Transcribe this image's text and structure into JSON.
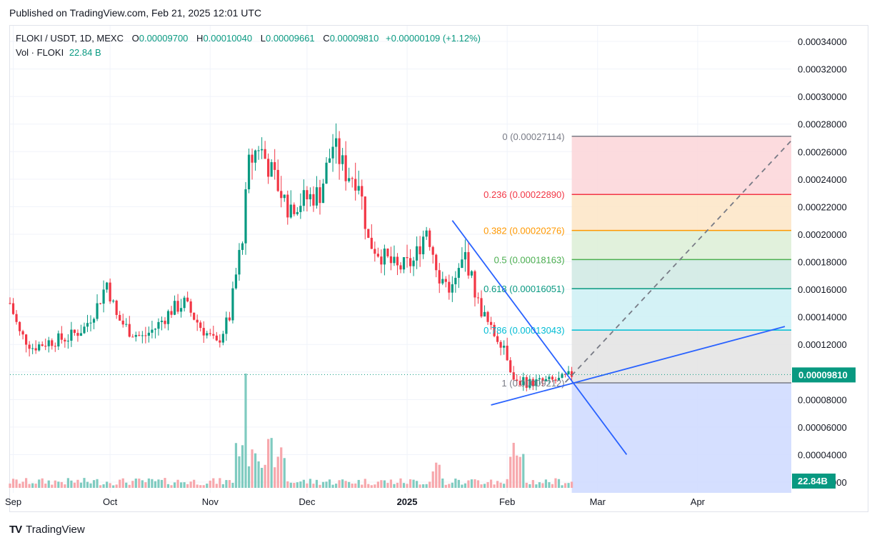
{
  "header": {
    "published": "Published on TradingView.com, Feb 21, 2025 12:01 UTC"
  },
  "legend": {
    "symbol": "FLOKI / USDT, 1D, MEXC",
    "o_label": "O",
    "o": "0.00009700",
    "h_label": "H",
    "h": "0.00010040",
    "l_label": "L",
    "l": "0.00009661",
    "c_label": "C",
    "c": "0.00009810",
    "change": "+0.00000109 (+1.12%)",
    "vol_label": "Vol · FLOKI",
    "vol_value": "22.84 B"
  },
  "footer": {
    "brand": "TradingView",
    "logo": "TV"
  },
  "colors": {
    "up": "#089981",
    "down": "#f23645",
    "vol_up": "#7fcbc0",
    "vol_down": "#f7a7ac",
    "trend_line": "#2962ff",
    "grid": "#f0f3fa"
  },
  "chart_data": {
    "type": "candlestick",
    "symbol": "FLOKI / USDT",
    "interval": "1D",
    "exchange": "MEXC",
    "y_axis": {
      "range": [
        0.0,
        0.000345
      ],
      "ticks": [
        "0.00034000",
        "0.00032000",
        "0.00030000",
        "0.00028000",
        "0.00026000",
        "0.00024000",
        "0.00022000",
        "0.00020000",
        "0.00018000",
        "0.00016000",
        "0.00014000",
        "0.00012000",
        "0.00010000",
        "0.00008000",
        "0.00006000",
        "0.00004000",
        "0.00002000"
      ],
      "tick_values": [
        0.00034,
        0.00032,
        0.0003,
        0.00028,
        0.00026,
        0.00024,
        0.00022,
        0.0002,
        0.00018,
        0.00016,
        0.00014,
        0.00012,
        0.0001,
        8e-05,
        6e-05,
        4e-05,
        2e-05
      ],
      "last_price": "0.00009810",
      "last_price_value": 9.81e-05,
      "last_volume": "22.84B"
    },
    "x_axis": {
      "labels": [
        "Sep",
        "Oct",
        "Nov",
        "Dec",
        "2025",
        "Feb",
        "Mar",
        "Apr"
      ],
      "label_dates": [
        "2024-09-01",
        "2024-10-01",
        "2024-11-01",
        "2024-12-01",
        "2025-01-01",
        "2025-02-01",
        "2025-03-01",
        "2025-04-01"
      ],
      "range": [
        "2024-08-31",
        "2025-04-30"
      ]
    },
    "price_path": [
      [
        "2024-08-31",
        0.00015
      ],
      [
        "2024-09-03",
        0.000128
      ],
      [
        "2024-09-07",
        0.000118
      ],
      [
        "2024-09-12",
        0.000122
      ],
      [
        "2024-09-18",
        0.000125
      ],
      [
        "2024-09-23",
        0.000132
      ],
      [
        "2024-09-27",
        0.000148
      ],
      [
        "2024-09-30",
        0.000165
      ],
      [
        "2024-10-03",
        0.00014
      ],
      [
        "2024-10-07",
        0.00013
      ],
      [
        "2024-10-11",
        0.000125
      ],
      [
        "2024-10-15",
        0.000132
      ],
      [
        "2024-10-20",
        0.000145
      ],
      [
        "2024-10-24",
        0.00015
      ],
      [
        "2024-10-29",
        0.000133
      ],
      [
        "2024-11-03",
        0.00012
      ],
      [
        "2024-11-07",
        0.00014
      ],
      [
        "2024-11-11",
        0.0002
      ],
      [
        "2024-11-13",
        0.00025
      ],
      [
        "2024-11-16",
        0.000265
      ],
      [
        "2024-11-20",
        0.000245
      ],
      [
        "2024-11-25",
        0.00022
      ],
      [
        "2024-11-30",
        0.000225
      ],
      [
        "2024-12-05",
        0.00023
      ],
      [
        "2024-12-09",
        0.000265
      ],
      [
        "2024-12-13",
        0.000245
      ],
      [
        "2024-12-17",
        0.00024
      ],
      [
        "2024-12-20",
        0.000195
      ],
      [
        "2024-12-24",
        0.000185
      ],
      [
        "2024-12-29",
        0.000175
      ],
      [
        "2025-01-03",
        0.00018
      ],
      [
        "2025-01-07",
        0.000205
      ],
      [
        "2025-01-11",
        0.00017
      ],
      [
        "2025-01-15",
        0.00016
      ],
      [
        "2025-01-19",
        0.000185
      ],
      [
        "2025-01-23",
        0.00015
      ],
      [
        "2025-01-27",
        0.00013
      ],
      [
        "2025-01-31",
        0.00012
      ],
      [
        "2025-02-03",
        9.5e-05
      ],
      [
        "2025-02-07",
        9.2e-05
      ],
      [
        "2025-02-12",
        9.3e-05
      ],
      [
        "2025-02-17",
        9.4e-05
      ],
      [
        "2025-02-21",
        9.81e-05
      ]
    ],
    "volume_series": {
      "name": "Vol · FLOKI",
      "peaks": [
        [
          "2024-11-12",
          22.84
        ],
        [
          "2025-02-03",
          9.0
        ]
      ],
      "unit": "B"
    },
    "fibonacci": {
      "levels": [
        {
          "label": "0 (0.00027114)",
          "ratio": 0,
          "price": 0.00027114,
          "color": "#787b86",
          "fill": "#fbd5d8"
        },
        {
          "label": "0.236 (0.00022890)",
          "ratio": 0.236,
          "price": 0.0002289,
          "color": "#f23645",
          "fill": "#fde5c6"
        },
        {
          "label": "0.382 (0.00020276)",
          "ratio": 0.382,
          "price": 0.00020276,
          "color": "#ff9800",
          "fill": "#dcefd6"
        },
        {
          "label": "0.5 (0.00018163)",
          "ratio": 0.5,
          "price": 0.00018163,
          "color": "#4caf50",
          "fill": "#cfe9e3"
        },
        {
          "label": "0.618 (0.00016051)",
          "ratio": 0.618,
          "price": 0.00016051,
          "color": "#089981",
          "fill": "#cdf0f4"
        },
        {
          "label": "0.786 (0.00013043)",
          "ratio": 0.786,
          "price": 0.00013043,
          "color": "#00bcd4",
          "fill": "#e3e3e3"
        },
        {
          "label": "1 (0.00009212)",
          "ratio": 1,
          "price": 9.212e-05,
          "color": "#787b86",
          "fill": "#d0dcff"
        }
      ],
      "start_date": "2025-02-21",
      "end_date": "2025-04-30"
    },
    "annotations": [
      {
        "type": "trendline",
        "from": [
          "2025-01-15",
          0.00021
        ],
        "to": [
          "2025-03-10",
          4e-05
        ],
        "color": "#2962ff"
      },
      {
        "type": "trendline",
        "from": [
          "2025-01-27",
          7.6e-05
        ],
        "to": [
          "2025-04-28",
          0.000133
        ],
        "color": "#2962ff"
      },
      {
        "type": "dashed-projection",
        "from": [
          "2025-02-19",
          9.25e-05
        ],
        "to": [
          "2025-04-30",
          0.000268
        ],
        "color": "#787b86"
      }
    ],
    "grid": true
  }
}
